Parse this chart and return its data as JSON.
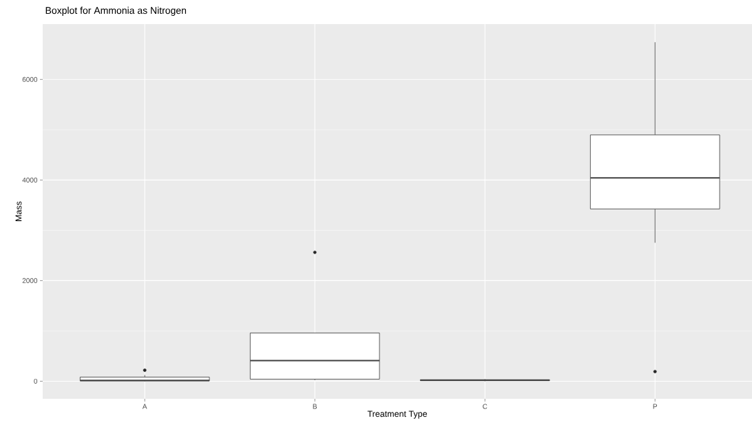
{
  "chart_data": {
    "type": "box",
    "title": "Boxplot for Ammonia as Nitrogen",
    "xlabel": "Treatment Type",
    "ylabel": "Mass",
    "categories": [
      "A",
      "B",
      "C",
      "P"
    ],
    "boxes": [
      {
        "low": 0,
        "q1": 5,
        "median": 15,
        "q3": 82,
        "high": 123,
        "outliers": [
          219
        ]
      },
      {
        "low": 20,
        "q1": 41,
        "median": 411,
        "q3": 959,
        "high": 959,
        "outliers": [
          2562
        ]
      },
      {
        "low": 0,
        "q1": 10,
        "median": 20,
        "q3": 30,
        "high": 40
      },
      {
        "low": 2753,
        "q1": 3425,
        "median": 4041,
        "q3": 4897,
        "high": 6740,
        "outliers": [
          192
        ]
      }
    ],
    "ylim": [
      -350,
      7100
    ],
    "yticks": [
      0,
      2000,
      4000,
      6000
    ],
    "grid": true
  }
}
